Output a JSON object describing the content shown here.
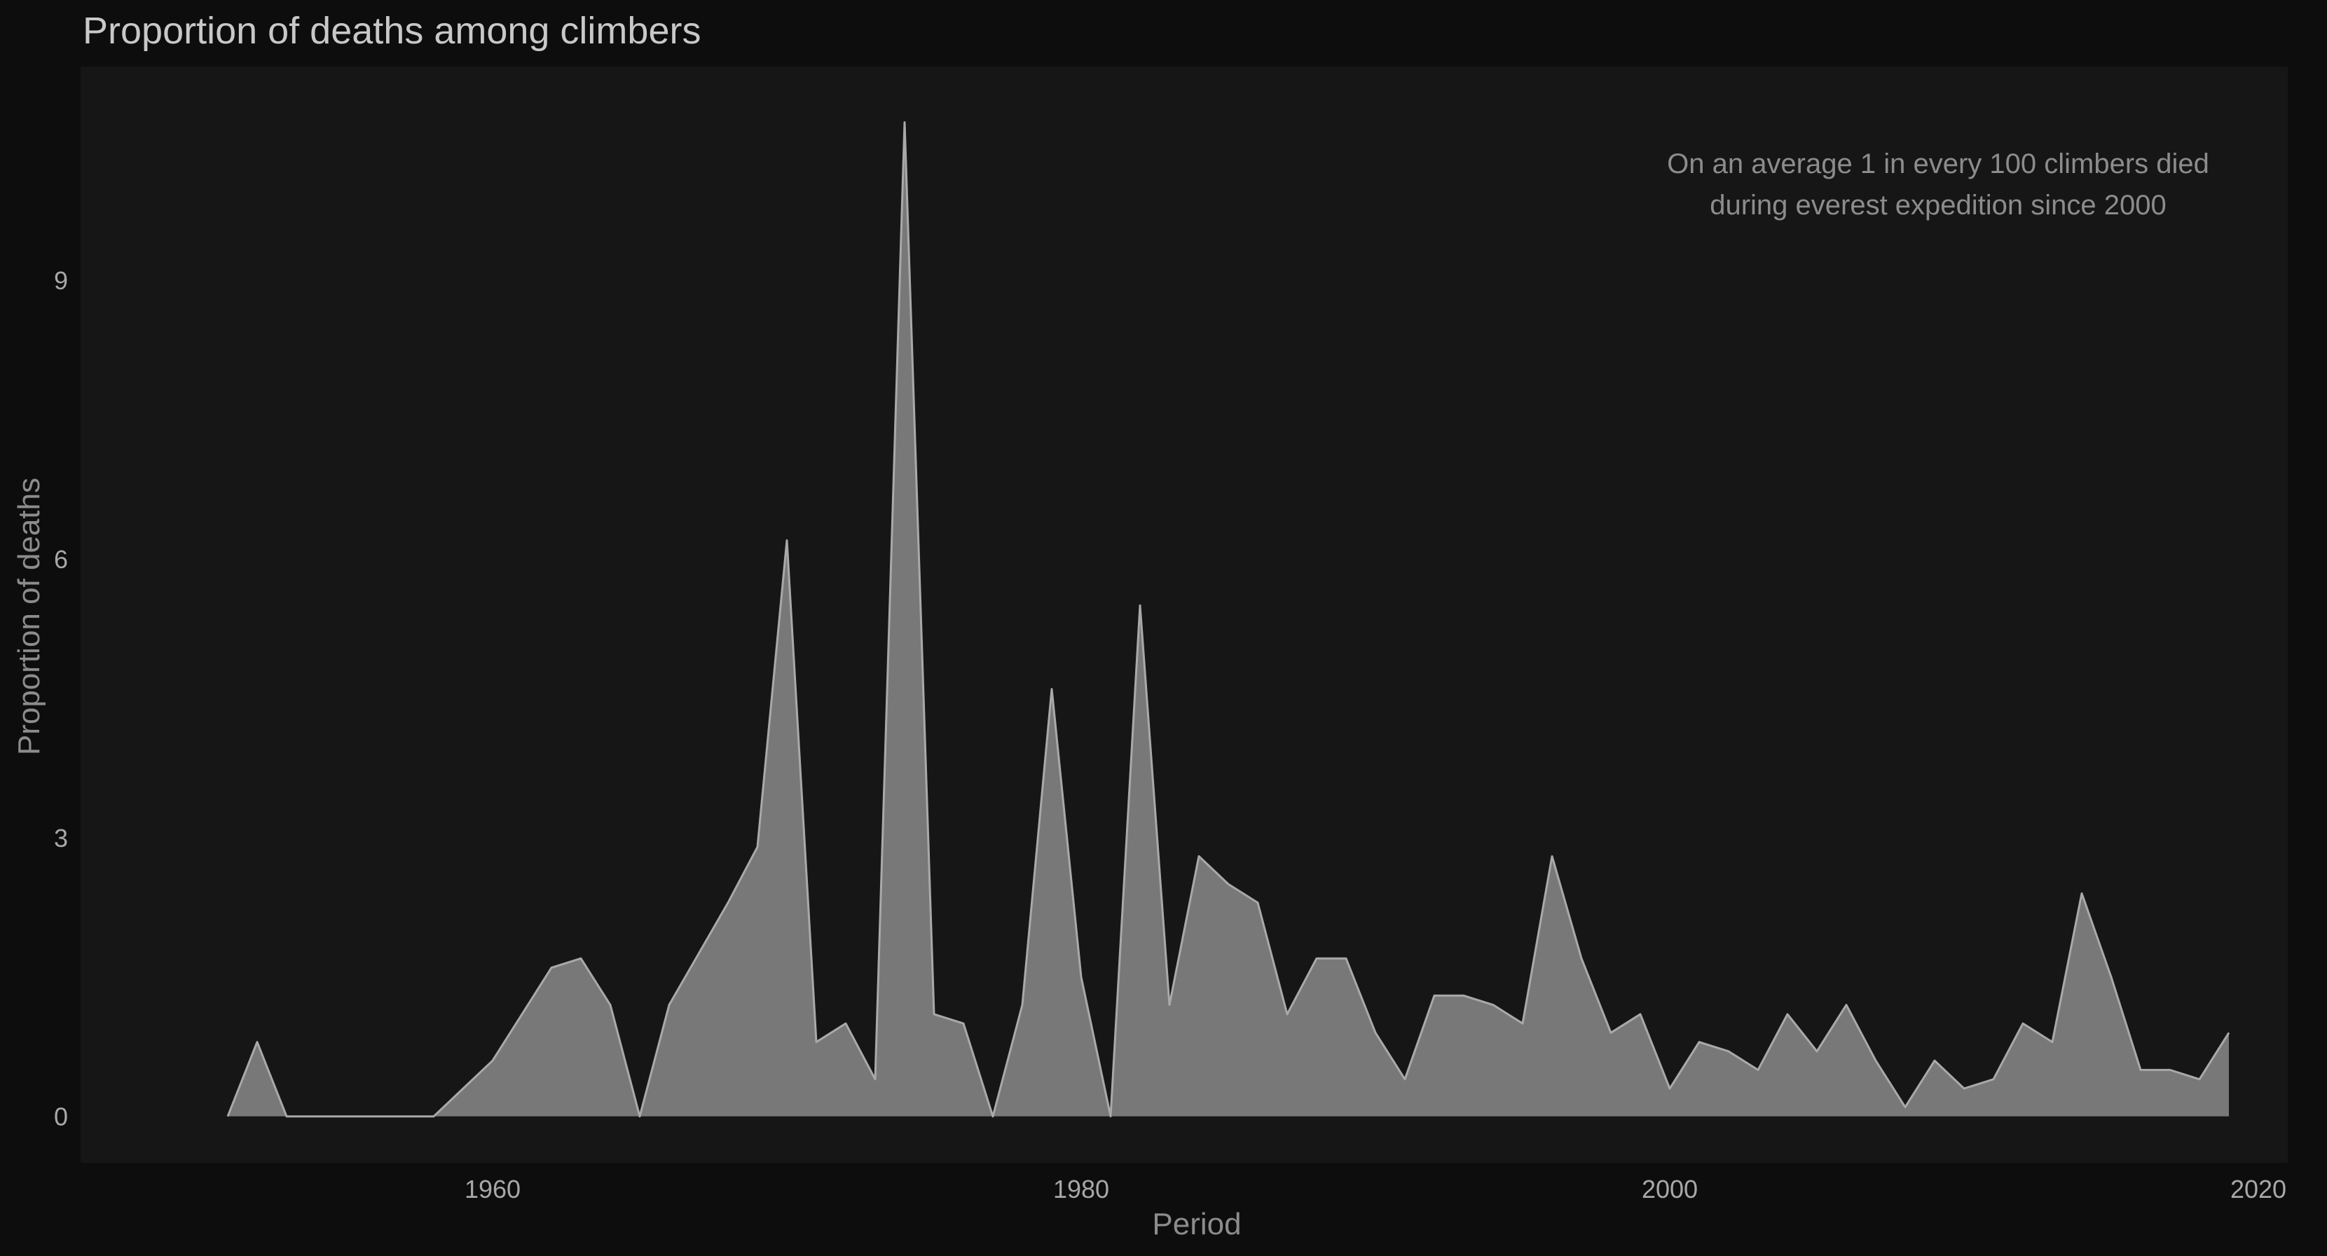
{
  "chart_data": {
    "type": "area",
    "title": "Proportion of deaths among climbers",
    "xlabel": "Period",
    "ylabel": "Proportion of deaths",
    "annotation": [
      "On an average 1 in every 100 climbers died",
      "during everest expedition since 2000"
    ],
    "xlim": [
      1946,
      2021
    ],
    "ylim": [
      -0.5,
      11.3
    ],
    "x_ticks": [
      1960,
      1980,
      2000,
      2020
    ],
    "y_ticks": [
      0,
      3,
      6,
      9
    ],
    "grid": false,
    "colors": {
      "page": "#0d0d0d",
      "panel": "#161616",
      "area": "#787878",
      "line": "#a9a9a9"
    },
    "series": [
      {
        "x": [
          1951,
          1952,
          1953,
          1954,
          1955,
          1956,
          1957,
          1958,
          1959,
          1960,
          1961,
          1962,
          1963,
          1964,
          1965,
          1966,
          1967,
          1968,
          1969,
          1970,
          1971,
          1972,
          1973,
          1974,
          1975,
          1976,
          1977,
          1978,
          1979,
          1980,
          1981,
          1982,
          1983,
          1984,
          1985,
          1986,
          1987,
          1988,
          1989,
          1990,
          1991,
          1992,
          1993,
          1994,
          1995,
          1996,
          1997,
          1998,
          1999,
          2000,
          2001,
          2002,
          2003,
          2004,
          2005,
          2006,
          2007,
          2008,
          2009,
          2010,
          2011,
          2012,
          2013,
          2014,
          2015,
          2016,
          2017,
          2018,
          2019
        ],
        "y": [
          0,
          0.8,
          0,
          0,
          0,
          0,
          0,
          0,
          0.3,
          0.6,
          1.1,
          1.6,
          1.7,
          1.2,
          0,
          1.2,
          1.75,
          2.3,
          2.9,
          6.2,
          0.8,
          1.0,
          0.4,
          10.7,
          1.1,
          1.0,
          0,
          1.2,
          4.6,
          1.5,
          0,
          5.5,
          1.2,
          2.8,
          2.5,
          2.3,
          1.1,
          1.7,
          1.7,
          0.9,
          0.4,
          1.3,
          1.3,
          1.2,
          1.0,
          2.8,
          1.7,
          0.9,
          1.1,
          0.3,
          0.8,
          0.7,
          0.5,
          1.1,
          0.7,
          1.2,
          0.6,
          0.1,
          0.6,
          0.3,
          0.4,
          1.0,
          0.8,
          2.4,
          1.5,
          0.5,
          0.5,
          0.4,
          0.9
        ]
      }
    ]
  }
}
